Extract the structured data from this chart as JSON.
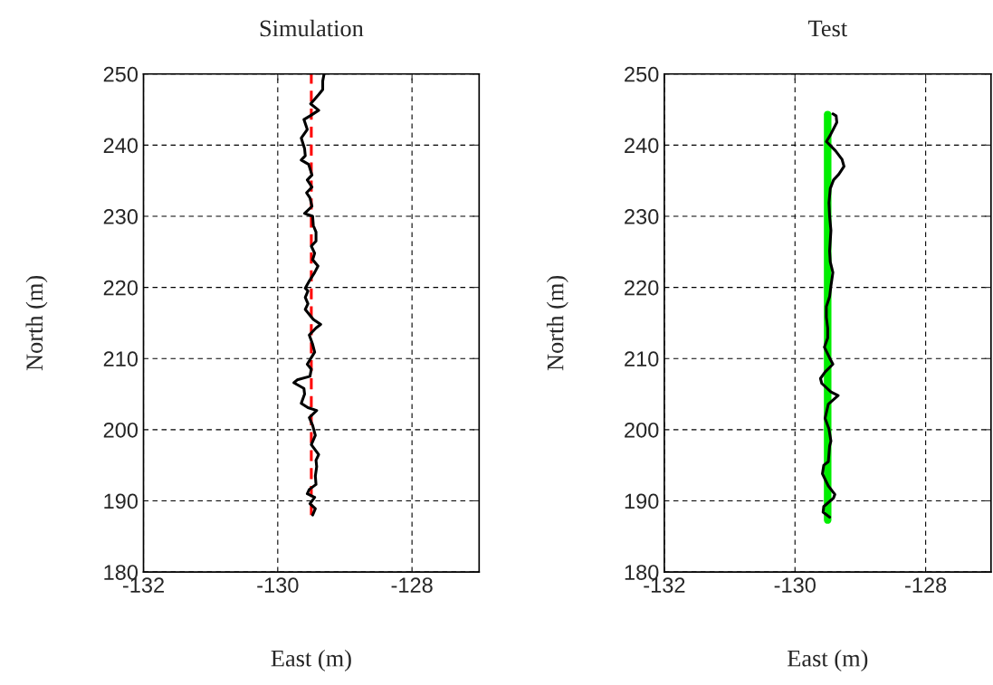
{
  "chart_data": [
    {
      "type": "line",
      "title": "Simulation",
      "xlabel": "East (m)",
      "ylabel": "North (m)",
      "xlim": [
        -132,
        -127
      ],
      "ylim": [
        180,
        250
      ],
      "xticks": [
        -132,
        -130,
        -128
      ],
      "yticks": [
        180,
        190,
        200,
        210,
        220,
        230,
        240,
        250
      ],
      "grid": true,
      "series": [
        {
          "color": "#ff0000",
          "line_style": "dashed",
          "x": [
            -129.5,
            -129.5
          ],
          "values": [
            188.0,
            250.0
          ]
        },
        {
          "color": "#000000",
          "line_style": "solid",
          "x": [
            -129.48,
            -129.44,
            -129.52,
            -129.45,
            -129.56,
            -129.53,
            -129.43,
            -129.44,
            -129.42,
            -129.43,
            -129.39,
            -129.5,
            -129.44,
            -129.48,
            -129.53,
            -129.42,
            -129.55,
            -129.65,
            -129.6,
            -129.61,
            -129.76,
            -129.71,
            -129.52,
            -129.5,
            -129.56,
            -129.45,
            -129.48,
            -129.53,
            -129.43,
            -129.36,
            -129.47,
            -129.59,
            -129.55,
            -129.59,
            -129.55,
            -129.59,
            -129.53,
            -129.45,
            -129.4,
            -129.48,
            -129.45,
            -129.5,
            -129.43,
            -129.43,
            -129.47,
            -129.48,
            -129.6,
            -129.49,
            -129.52,
            -129.57,
            -129.49,
            -129.56,
            -129.49,
            -129.54,
            -129.65,
            -129.59,
            -129.6,
            -129.65,
            -129.56,
            -129.61,
            -129.52,
            -129.39,
            -129.51,
            -129.39,
            -129.33,
            -129.33,
            -129.31
          ],
          "values": [
            188.0,
            188.9,
            189.6,
            190.5,
            191.0,
            191.6,
            192.3,
            193.5,
            194.8,
            195.7,
            196.5,
            197.9,
            199.2,
            200.6,
            201.7,
            202.7,
            203.1,
            203.7,
            205.0,
            205.8,
            206.6,
            207.0,
            207.5,
            208.5,
            209.2,
            210.9,
            212.0,
            213.3,
            214.3,
            214.8,
            215.5,
            216.9,
            217.7,
            218.6,
            219.5,
            219.9,
            220.9,
            222.1,
            223.0,
            223.9,
            224.8,
            225.8,
            226.5,
            227.8,
            228.7,
            230.0,
            230.4,
            231.4,
            232.6,
            233.3,
            234.1,
            235.1,
            235.8,
            237.3,
            237.9,
            238.5,
            239.5,
            241.0,
            242.2,
            243.6,
            244.1,
            244.9,
            245.8,
            247.1,
            247.8,
            249.0,
            250.0
          ]
        }
      ]
    },
    {
      "type": "line",
      "title": "Test",
      "xlabel": "East (m)",
      "ylabel": "North (m)",
      "xlim": [
        -132,
        -127
      ],
      "ylim": [
        180,
        250
      ],
      "xticks": [
        -132,
        -130,
        -128
      ],
      "yticks": [
        180,
        190,
        200,
        210,
        220,
        230,
        240,
        250
      ],
      "grid": true,
      "series": [
        {
          "color": "#00ee00",
          "line_style": "solid",
          "x": [
            -129.5,
            -129.5
          ],
          "values": [
            187.3,
            244.3
          ]
        },
        {
          "color": "#000000",
          "line_style": "solid",
          "x": [
            -129.47,
            -129.57,
            -129.56,
            -129.41,
            -129.39,
            -129.49,
            -129.58,
            -129.56,
            -129.49,
            -129.47,
            -129.45,
            -129.48,
            -129.54,
            -129.49,
            -129.34,
            -129.45,
            -129.59,
            -129.61,
            -129.54,
            -129.42,
            -129.46,
            -129.55,
            -129.5,
            -129.5,
            -129.52,
            -129.52,
            -129.47,
            -129.45,
            -129.42,
            -129.46,
            -129.47,
            -129.45,
            -129.47,
            -129.48,
            -129.46,
            -129.41,
            -129.33,
            -129.25,
            -129.28,
            -129.38,
            -129.52,
            -129.46,
            -129.36,
            -129.37,
            -129.42
          ],
          "values": [
            187.7,
            188.4,
            189.2,
            190.4,
            190.9,
            192.1,
            193.8,
            195.0,
            195.5,
            197.7,
            198.4,
            200.1,
            201.6,
            203.6,
            204.8,
            205.3,
            206.5,
            207.2,
            208.1,
            209.2,
            209.9,
            211.6,
            212.9,
            214.3,
            215.8,
            217.3,
            218.7,
            220.2,
            222.1,
            223.6,
            225.1,
            228.0,
            230.0,
            231.9,
            233.9,
            235.1,
            235.9,
            237.0,
            238.0,
            239.2,
            240.5,
            241.4,
            243.2,
            244.1,
            244.4
          ]
        }
      ]
    }
  ]
}
